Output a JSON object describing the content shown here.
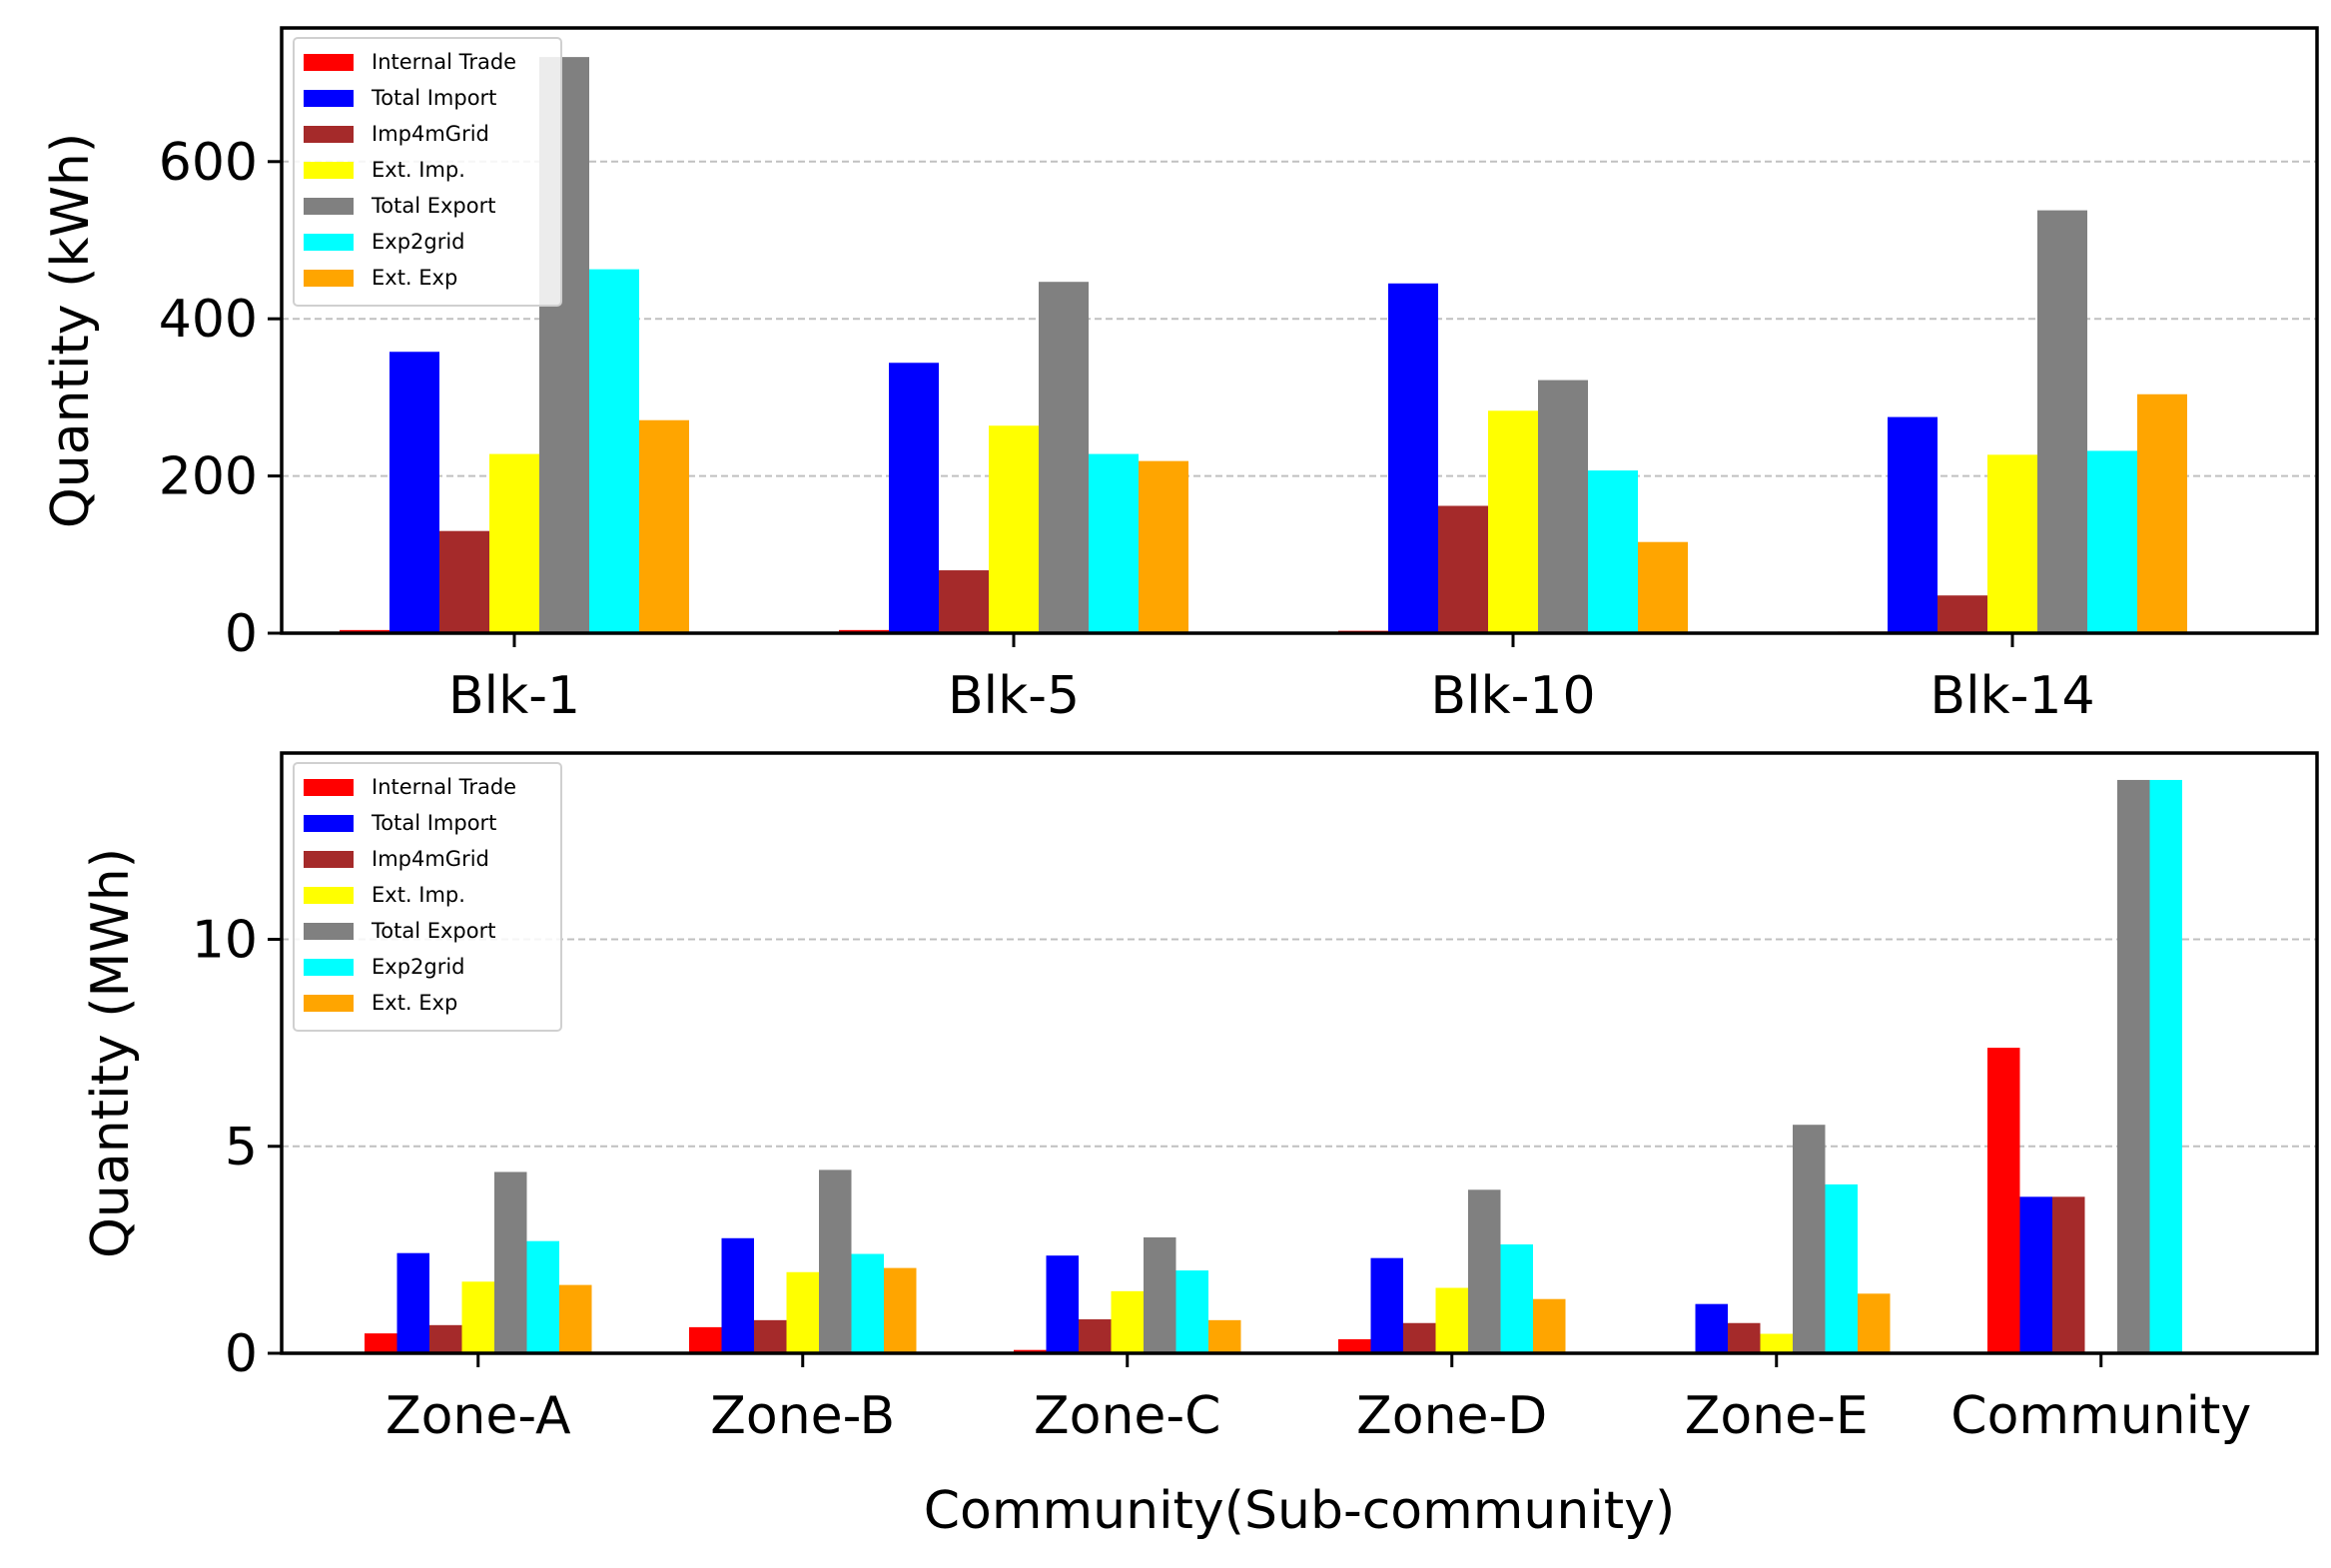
{
  "chart_data": [
    {
      "type": "bar",
      "categories": [
        "Blk-1",
        "Blk-5",
        "Blk-10",
        "Blk-14"
      ],
      "series": [
        {
          "name": "Internal Trade",
          "color": "#ff0000",
          "values": [
            4,
            4,
            3,
            2
          ]
        },
        {
          "name": "Total Import",
          "color": "#0000ff",
          "values": [
            358,
            344,
            445,
            275
          ]
        },
        {
          "name": "Imp4mGrid",
          "color": "#a52a2a",
          "values": [
            130,
            80,
            162,
            48
          ]
        },
        {
          "name": "Ext. Imp.",
          "color": "#ffff00",
          "values": [
            228,
            264,
            283,
            227
          ]
        },
        {
          "name": "Total Export",
          "color": "#808080",
          "values": [
            733,
            447,
            322,
            538
          ]
        },
        {
          "name": "Exp2grid",
          "color": "#00ffff",
          "values": [
            463,
            228,
            207,
            232
          ]
        },
        {
          "name": "Ext. Exp",
          "color": "#ffa500",
          "values": [
            271,
            219,
            116,
            304
          ]
        }
      ],
      "xlabel": "",
      "ylabel": "Quantity (kWh)",
      "yticks": [
        0,
        200,
        400,
        600
      ],
      "ylim": [
        0,
        770
      ],
      "grid": "y-dashed",
      "legend": "top-left"
    },
    {
      "type": "bar",
      "categories": [
        "Zone-A",
        "Zone-B",
        "Zone-C",
        "Zone-D",
        "Zone-E",
        "Community"
      ],
      "series": [
        {
          "name": "Internal Trade",
          "color": "#ff0000",
          "values": [
            0.48,
            0.63,
            0.08,
            0.34,
            0,
            7.38
          ]
        },
        {
          "name": "Total Import",
          "color": "#0000ff",
          "values": [
            2.42,
            2.78,
            2.36,
            2.3,
            1.19,
            3.78
          ]
        },
        {
          "name": "Imp4mGrid",
          "color": "#a52a2a",
          "values": [
            0.68,
            0.8,
            0.82,
            0.73,
            0.73,
            3.78
          ]
        },
        {
          "name": "Ext. Imp.",
          "color": "#ffff00",
          "values": [
            1.73,
            1.96,
            1.5,
            1.58,
            0.47,
            0
          ]
        },
        {
          "name": "Total Export",
          "color": "#808080",
          "values": [
            4.38,
            4.43,
            2.8,
            3.95,
            5.52,
            13.85
          ]
        },
        {
          "name": "Exp2grid",
          "color": "#00ffff",
          "values": [
            2.71,
            2.4,
            2.0,
            2.63,
            4.08,
            13.85
          ]
        },
        {
          "name": "Ext. Exp",
          "color": "#ffa500",
          "values": [
            1.65,
            2.06,
            0.8,
            1.31,
            1.44,
            0
          ]
        }
      ],
      "xlabel": "Community(Sub-community)",
      "ylabel": "Quantity (MWh)",
      "yticks": [
        0,
        5,
        10
      ],
      "ylim": [
        0,
        14.5
      ],
      "grid": "y-dashed",
      "legend": "top-left"
    }
  ]
}
